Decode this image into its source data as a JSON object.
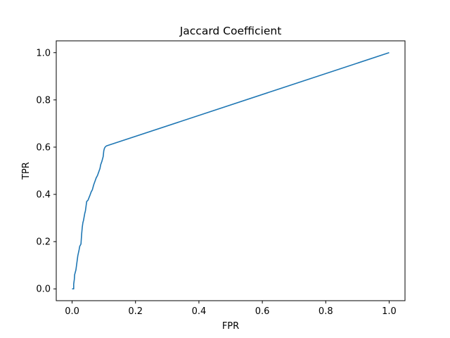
{
  "chart_data": {
    "type": "line",
    "title": "Jaccard Coefficient",
    "xlabel": "FPR",
    "ylabel": "TPR",
    "xlim": [
      -0.05,
      1.05
    ],
    "ylim": [
      -0.05,
      1.05
    ],
    "xticks": [
      0.0,
      0.2,
      0.4,
      0.6,
      0.8,
      1.0
    ],
    "yticks": [
      0.0,
      0.2,
      0.4,
      0.6,
      0.8,
      1.0
    ],
    "xtick_labels": [
      "0.0",
      "0.2",
      "0.4",
      "0.6",
      "0.8",
      "1.0"
    ],
    "ytick_labels": [
      "0.0",
      "0.2",
      "0.4",
      "0.6",
      "0.8",
      "1.0"
    ],
    "grid": false,
    "series": [
      {
        "color": "#1f77b4",
        "x": [
          0.0,
          0.005,
          0.005,
          0.007,
          0.008,
          0.012,
          0.014,
          0.016,
          0.018,
          0.022,
          0.024,
          0.028,
          0.03,
          0.032,
          0.034,
          0.036,
          0.04,
          0.042,
          0.044,
          0.046,
          0.05,
          0.053,
          0.056,
          0.06,
          0.064,
          0.068,
          0.072,
          0.076,
          0.08,
          0.084,
          0.088,
          0.09,
          0.094,
          0.098,
          0.1,
          0.102,
          0.104,
          0.108,
          1.0
        ],
        "y": [
          0.0,
          0.0,
          0.02,
          0.04,
          0.06,
          0.08,
          0.1,
          0.12,
          0.14,
          0.165,
          0.18,
          0.19,
          0.23,
          0.26,
          0.28,
          0.29,
          0.32,
          0.33,
          0.35,
          0.37,
          0.375,
          0.385,
          0.395,
          0.41,
          0.42,
          0.44,
          0.455,
          0.47,
          0.48,
          0.495,
          0.51,
          0.525,
          0.54,
          0.56,
          0.585,
          0.595,
          0.6,
          0.605,
          1.0
        ]
      }
    ]
  }
}
